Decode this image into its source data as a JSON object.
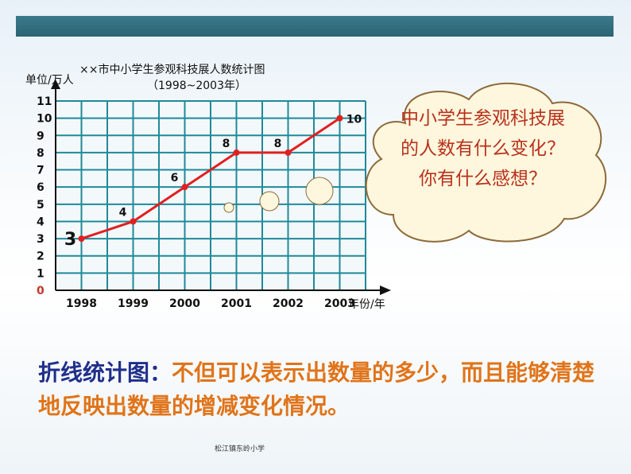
{
  "chart_data": {
    "type": "line",
    "title": "××市中小学生参观科技展人数统计图",
    "subtitle": "（1998~2003年）",
    "ylabel": "单位/万人",
    "xlabel": "年份/年",
    "categories": [
      "1998",
      "1999",
      "2000",
      "2001",
      "2002",
      "2003"
    ],
    "values": [
      3,
      4,
      6,
      8,
      8,
      10
    ],
    "data_labels": [
      "3",
      "4",
      "6",
      "8",
      "8",
      "10"
    ],
    "y_ticks": [
      "0",
      "1",
      "2",
      "3",
      "4",
      "5",
      "6",
      "7",
      "8",
      "9",
      "10",
      "11"
    ],
    "ylim": [
      0,
      11
    ],
    "grid": true,
    "colors": {
      "line": "#e02020",
      "grid": "#1f8a98",
      "axis": "#111111",
      "zero_tick": "#c0392b"
    }
  },
  "callout": {
    "text": "中小学生参观科技展的人数有什么变化？你有什么感想？"
  },
  "description": {
    "keyword": "折线统计图：",
    "text": "不但可以表示出数量的多少，而且能够清楚地反映出数量的增减变化情况。"
  },
  "footer": "松江镇东岭小学"
}
